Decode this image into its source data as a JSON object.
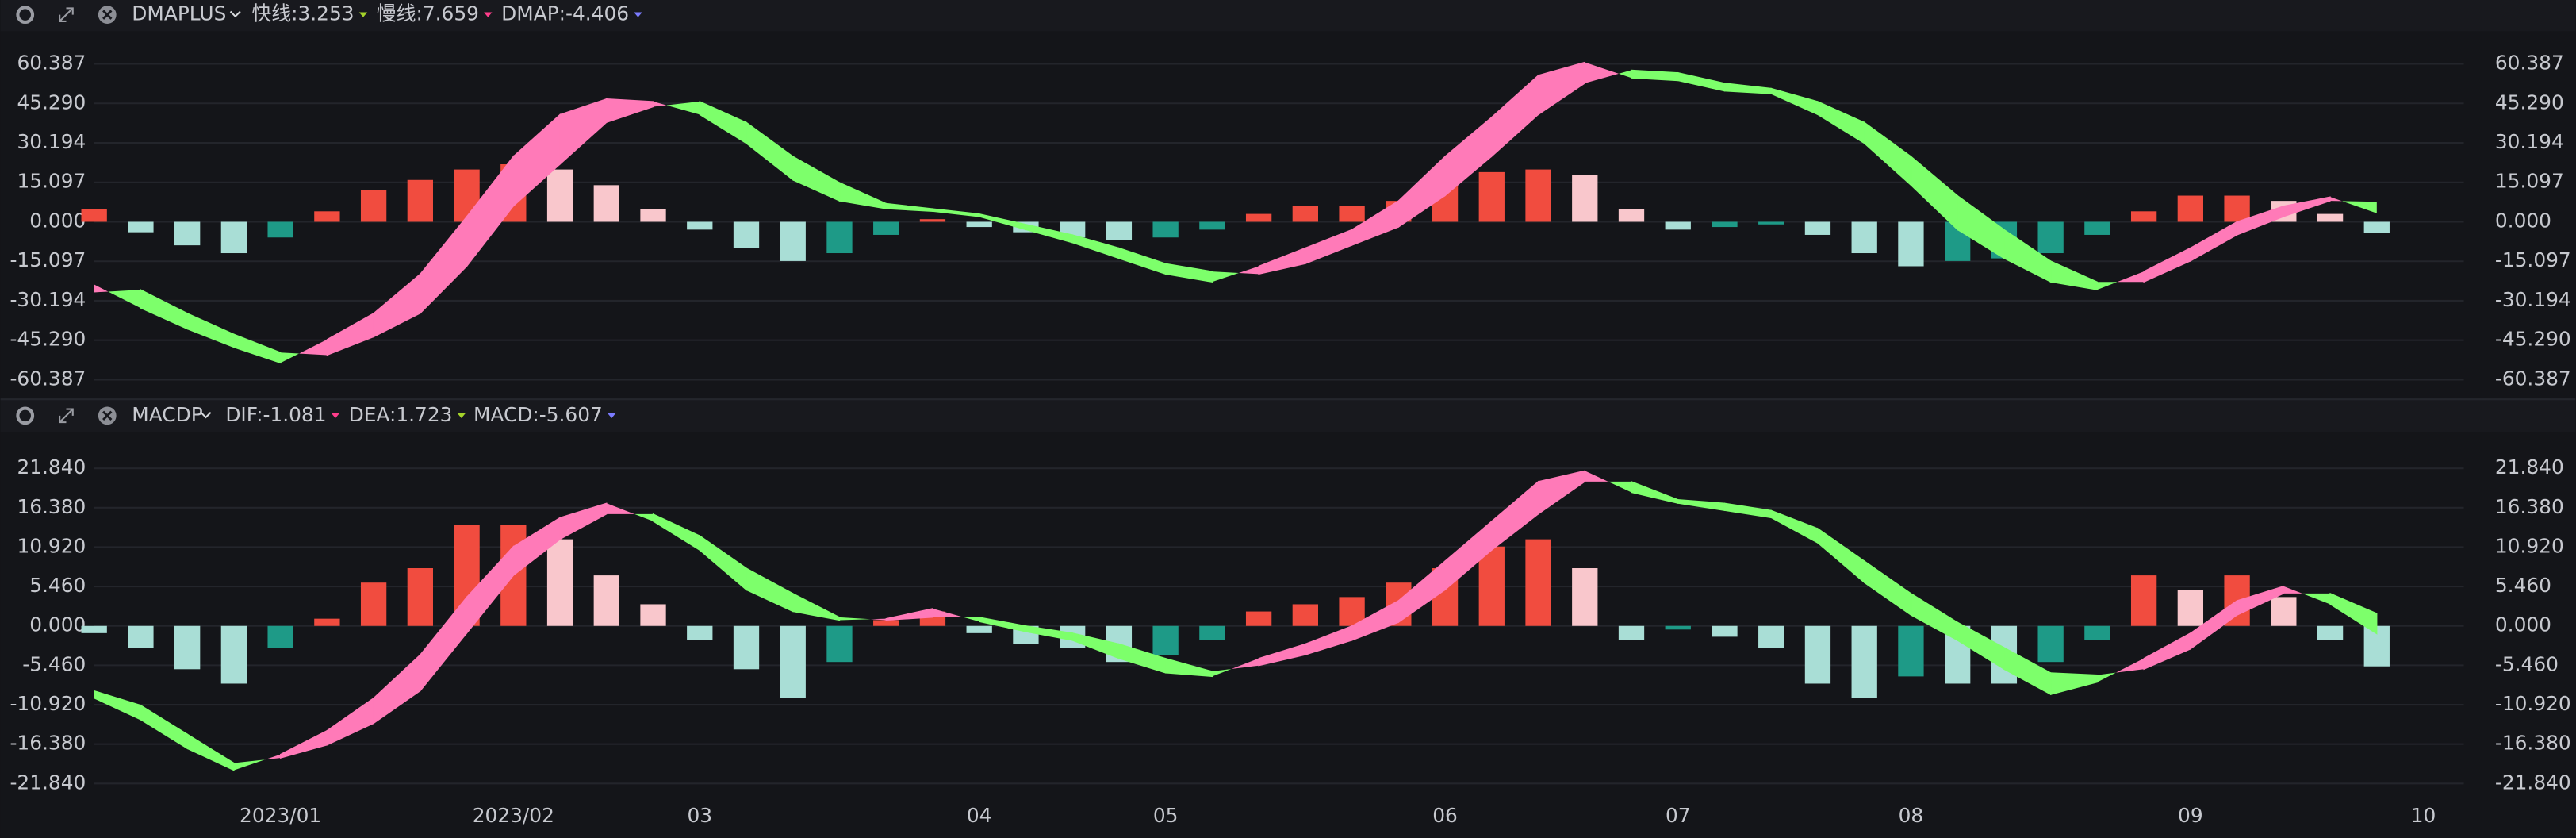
{
  "chart_data": [
    {
      "type": "combo",
      "title": "DMAPLUS",
      "ylim": [
        -66,
        71
      ],
      "yticks": [
        60.387,
        {
          "value": 45.29,
          "label": "45.290"
        },
        30.194,
        15.097,
        {
          "value": 0,
          "label": "0.000"
        },
        -15.097,
        -30.194,
        {
          "value": -45.29,
          "label": "-45.290"
        },
        -60.387
      ],
      "grid": true,
      "band_colors": [
        "#ff7ab8",
        "#7dff6b"
      ],
      "bar_colors": [
        "#f14c3f",
        "#f9c7cc",
        "#a9ded6",
        "#1e9a87"
      ],
      "series": [
        {
          "name": "快线:3.253",
          "color": "#a5d32a",
          "type": "line",
          "values": [
            -24,
            -33,
            -41,
            -48,
            -54,
            -45,
            -35,
            -20,
            2,
            25,
            41,
            47,
            46,
            41,
            30,
            16,
            8,
            5,
            4,
            2,
            -3,
            -8,
            -14,
            -20,
            -23,
            -17,
            -10,
            -3,
            8,
            25,
            40,
            56,
            61,
            55,
            54,
            50,
            49,
            41,
            30,
            14,
            -3,
            -14,
            -23,
            -26,
            -19,
            -10,
            0,
            6,
            9.5,
            3.253,
            null,
            null
          ]
        },
        {
          "name": "慢线:7.659",
          "color": "#ff3d8b",
          "type": "line",
          "values": [
            -27,
            -26,
            -35,
            -43,
            -50,
            -51,
            -44,
            -35,
            -17,
            6,
            22,
            38,
            44,
            46,
            38,
            25,
            15,
            7,
            5,
            3,
            -1,
            -5,
            -10,
            -16,
            -19,
            -20,
            -16,
            -9,
            -2,
            10,
            25,
            41,
            53,
            58,
            57,
            53,
            51,
            46,
            38,
            25,
            10,
            -3,
            -15,
            -23,
            -23,
            -15,
            -5,
            2,
            8,
            7.659,
            null,
            null
          ]
        },
        {
          "name": "DMAP:-4.406",
          "color": "#7b7bff",
          "type": "bar",
          "values": [
            5,
            -4,
            -9,
            -12,
            -6,
            4,
            12,
            16,
            20,
            22,
            20,
            14,
            5,
            -3,
            -10,
            -15,
            -12,
            -5,
            1,
            -2,
            -4,
            -6,
            -7,
            -6,
            -3,
            3,
            6,
            6,
            8,
            14,
            19,
            20,
            18,
            5,
            -3,
            -2,
            -1,
            -5,
            -12,
            -17,
            -15,
            -14,
            -12,
            -5,
            4,
            10,
            10,
            8,
            3,
            -4.406,
            null,
            null
          ]
        }
      ]
    },
    {
      "type": "combo",
      "title": "MACDP",
      "ylim": [
        -23.7,
        26.4
      ],
      "yticks": [
        {
          "value": 21.84,
          "label": "21.840"
        },
        {
          "value": 16.38,
          "label": "16.380"
        },
        {
          "value": 10.92,
          "label": "10.920"
        },
        {
          "value": 5.46,
          "label": "5.460"
        },
        {
          "value": 0,
          "label": "0.000"
        },
        {
          "value": -5.46,
          "label": "-5.460"
        },
        {
          "value": -10.92,
          "label": "-10.920"
        },
        {
          "value": -16.38,
          "label": "-16.380"
        },
        {
          "value": -21.84,
          "label": "-21.840"
        }
      ],
      "grid": true,
      "band_colors": [
        "#ff7ab8",
        "#7dff6b"
      ],
      "bar_colors": [
        "#f14c3f",
        "#f9c7cc",
        "#a9ded6",
        "#1e9a87"
      ],
      "categories": [
        null,
        null,
        null,
        null,
        "2023/01",
        null,
        null,
        null,
        null,
        "2023/02",
        null,
        null,
        null,
        "03",
        null,
        null,
        null,
        null,
        null,
        "04",
        null,
        null,
        null,
        "05",
        null,
        null,
        null,
        null,
        null,
        "06",
        null,
        null,
        null,
        null,
        "07",
        null,
        null,
        null,
        null,
        "08",
        null,
        null,
        null,
        null,
        null,
        "09",
        null,
        null,
        null,
        null,
        "10",
        null
      ],
      "series": [
        {
          "name": "DIF:-1.081",
          "color": "#ff3d8b",
          "type": "line",
          "values": [
            -10,
            -13,
            -17,
            -20,
            -17.8,
            -14.5,
            -10,
            -4,
            4,
            11,
            15,
            17,
            14.5,
            10.5,
            5,
            2,
            0.8,
            1,
            2.4,
            0.6,
            -0.8,
            -2,
            -4.5,
            -6.5,
            -7,
            -4.5,
            -2.5,
            0,
            3.5,
            9,
            14.5,
            20,
            21.5,
            18.5,
            17,
            16,
            15,
            11.5,
            6,
            1.5,
            -2,
            -6,
            -9.5,
            -7.8,
            -4.5,
            -1,
            3.5,
            5.5,
            3,
            -1.081,
            null,
            null
          ]
        },
        {
          "name": "DEA:1.723",
          "color": "#a5d32a",
          "type": "line",
          "values": [
            -9,
            -11,
            -15,
            -19,
            -18.3,
            -16.5,
            -13.5,
            -9,
            -1,
            7,
            12,
            15.5,
            15.5,
            12.5,
            8,
            4.5,
            1.2,
            0.8,
            1.2,
            1.2,
            0,
            -1,
            -2.5,
            -4.5,
            -6.3,
            -5.5,
            -4,
            -2,
            0.5,
            5,
            10.5,
            15.5,
            20,
            20,
            17.5,
            17,
            16,
            13.5,
            9,
            4.5,
            0.5,
            -3,
            -6.5,
            -6.8,
            -6,
            -3.2,
            1.5,
            4.5,
            4.5,
            1.723,
            null,
            null
          ]
        },
        {
          "name": "MACD:-5.607",
          "color": "#7b7bff",
          "type": "bar",
          "values": [
            -1,
            -3,
            -6,
            -8,
            -3,
            1,
            6,
            8,
            14,
            14,
            12,
            7,
            3,
            -2,
            -6,
            -10,
            -5,
            0.8,
            2,
            -1,
            -2.5,
            -3,
            -5,
            -4,
            -2,
            2,
            3,
            4,
            6,
            8,
            11,
            12,
            8,
            -2,
            -0.5,
            -1.5,
            -3,
            -8,
            -10,
            -7,
            -8,
            -8,
            -5,
            -2,
            7,
            5,
            7,
            4,
            -2,
            -5.607,
            null,
            null
          ]
        }
      ]
    }
  ]
}
